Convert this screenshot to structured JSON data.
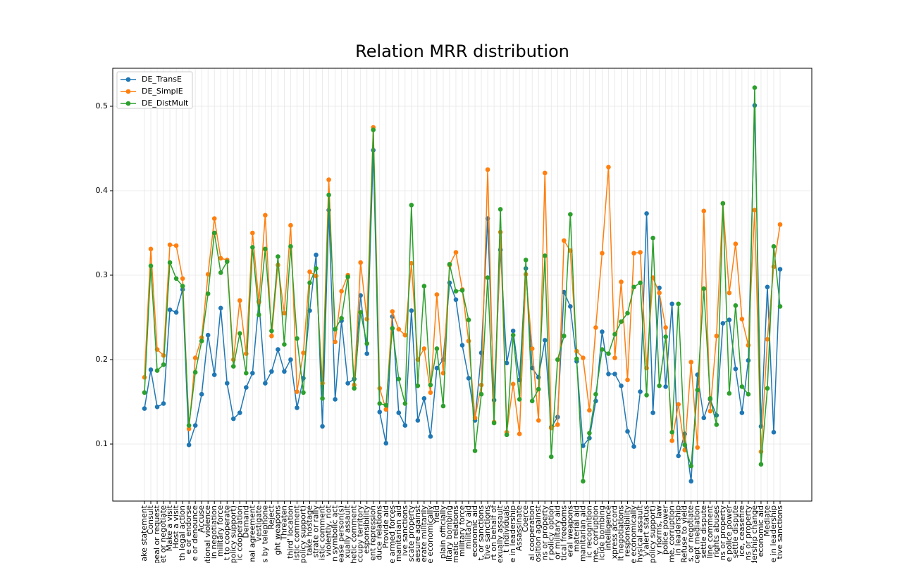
{
  "chart_data": {
    "type": "line",
    "title": "Relation MRR distribution",
    "categories": [
      "ake statement",
      "Consult",
      "peal or request",
      "et or negotiate",
      "Make a visit",
      "Host a visit",
      "th legal action",
      "e or endorse",
      "e or denounce",
      "Accuse",
      "ational violence",
      "in negotiation",
      "military force",
      "t to cooperate",
      "policy support)",
      "ic cooperation",
      "Demand",
      "nal agreement",
      "vestigate",
      "s by telephone",
      "Reject",
      "ght weapons",
      "Threaten",
      "third' location",
      "istic comment",
      "policy support)",
      "take hostage",
      "strate or rally",
      "istic comment",
      "violently, riot",
      "n symbolic act",
      "ease person(s)",
      "xually assault",
      "thetic comment",
      "ccupy territory",
      "esponsibility",
      "ent repression",
      "duce relations",
      "Provide aid",
      "e armed forces",
      "manitarian aid",
      "ive sanctions",
      "scate property",
      "aesure against",
      "erate militarily",
      "e economically",
      "Yield",
      "plain officially",
      "litary bombing",
      "matic relations",
      "military force",
      "military aid",
      "economic aid",
      "t, or sanctions",
      "tive sanctions",
      "rt on behalf of",
      "exually assault",
      "t individuals",
      "e in leadership",
      "Assassinate",
      "Coerce",
      "al cooperation",
      "osition against",
      "ns or property",
      "r policy option",
      "or military aid",
      "tical freedoms",
      "eral weapons",
      "material aid",
      "manitarian aid",
      "ic recognition",
      "me, corruption",
      "icide bombing",
      "intelligence",
      "xpress accord",
      "lt negotiations",
      "responsibility",
      "e economically",
      "hysical assault",
      "y'alert status",
      "policy support)",
      "y norms, law",
      "police power",
      "me, corruption",
      "in leadership",
      "Refuse to yield",
      "s, or negotiate",
      "cept mediation",
      "settle dispute",
      "line comment",
      "rights abuses",
      "ns or property",
      "e police power",
      "settle dispute",
      "ice, ceasefire",
      "ns or property",
      "dership change",
      "economic aid",
      "Mediate",
      "e in leadership",
      "tive sanctions"
    ],
    "series": [
      {
        "name": "DE_TransE",
        "color": "#1f77b4",
        "values": [
          0.142,
          0.188,
          0.144,
          0.148,
          0.259,
          0.256,
          0.283,
          0.099,
          0.122,
          0.159,
          0.229,
          0.182,
          0.261,
          0.172,
          0.13,
          0.137,
          0.167,
          0.184,
          0.269,
          0.172,
          0.186,
          0.212,
          0.186,
          0.2,
          0.143,
          0.178,
          0.258,
          0.324,
          0.121,
          0.377,
          0.153,
          0.246,
          0.172,
          0.177,
          0.276,
          0.207,
          0.448,
          0.138,
          0.101,
          0.251,
          0.137,
          0.122,
          0.258,
          0.128,
          0.154,
          0.109,
          0.19,
          0.2,
          0.291,
          0.271,
          0.217,
          0.178,
          0.128,
          0.208,
          0.367,
          0.152,
          0.33,
          0.196,
          0.234,
          0.176,
          0.308,
          0.19,
          0.179,
          0.223,
          0.12,
          0.132,
          0.28,
          0.263,
          0.198,
          0.098,
          0.107,
          0.151,
          0.233,
          0.183,
          0.183,
          0.169,
          0.115,
          0.097,
          0.162,
          0.373,
          0.137,
          0.285,
          0.168,
          0.266,
          0.086,
          0.112,
          0.056,
          0.182,
          0.131,
          0.153,
          0.134,
          0.243,
          0.247,
          0.189,
          0.137,
          0.199,
          0.501,
          0.121,
          0.286,
          0.114,
          0.307
        ]
      },
      {
        "name": "DE_SimplE",
        "color": "#ff7f0e",
        "values": [
          0.179,
          0.331,
          0.212,
          0.205,
          0.336,
          0.335,
          0.296,
          0.118,
          0.202,
          0.226,
          0.301,
          0.367,
          0.32,
          0.318,
          0.2,
          0.27,
          0.207,
          0.35,
          0.268,
          0.371,
          0.228,
          0.312,
          0.255,
          0.359,
          0.162,
          0.208,
          0.304,
          0.299,
          0.172,
          0.413,
          0.221,
          0.281,
          0.3,
          0.17,
          0.315,
          0.248,
          0.475,
          0.166,
          0.141,
          0.257,
          0.236,
          0.229,
          0.314,
          0.2,
          0.213,
          0.161,
          0.277,
          0.184,
          0.312,
          0.327,
          0.283,
          0.222,
          0.131,
          0.17,
          0.425,
          0.126,
          0.351,
          0.114,
          0.171,
          0.112,
          0.301,
          0.213,
          0.128,
          0.421,
          0.119,
          0.123,
          0.341,
          0.329,
          0.21,
          0.202,
          0.14,
          0.238,
          0.326,
          0.428,
          0.202,
          0.292,
          0.176,
          0.326,
          0.327,
          0.19,
          0.297,
          0.279,
          0.238,
          0.104,
          0.147,
          0.093,
          0.197,
          0.096,
          0.376,
          0.139,
          0.228,
          0.385,
          0.279,
          0.337,
          0.248,
          0.217,
          0.377,
          0.091,
          0.224,
          0.31,
          0.36
        ]
      },
      {
        "name": "DE_DistMult",
        "color": "#2ca02c",
        "values": [
          0.161,
          0.311,
          0.187,
          0.194,
          0.315,
          0.296,
          0.287,
          0.122,
          0.185,
          0.222,
          0.278,
          0.35,
          0.303,
          0.316,
          0.192,
          0.231,
          0.184,
          0.333,
          0.253,
          0.331,
          0.234,
          0.322,
          0.218,
          0.334,
          0.225,
          0.161,
          0.291,
          0.308,
          0.154,
          0.395,
          0.236,
          0.249,
          0.298,
          0.166,
          0.256,
          0.219,
          0.472,
          0.148,
          0.146,
          0.237,
          0.177,
          0.148,
          0.383,
          0.169,
          0.287,
          0.17,
          0.213,
          0.145,
          0.313,
          0.281,
          0.282,
          0.247,
          0.092,
          0.159,
          0.297,
          0.125,
          0.378,
          0.111,
          0.229,
          0.153,
          0.318,
          0.151,
          0.165,
          0.323,
          0.085,
          0.2,
          0.228,
          0.372,
          0.201,
          0.056,
          0.113,
          0.159,
          0.212,
          0.207,
          0.23,
          0.245,
          0.255,
          0.286,
          0.291,
          0.158,
          0.344,
          0.169,
          0.227,
          0.114,
          0.266,
          0.099,
          0.074,
          0.164,
          0.284,
          0.154,
          0.123,
          0.385,
          0.16,
          0.264,
          0.168,
          0.159,
          0.522,
          0.076,
          0.166,
          0.334,
          0.263
        ]
      }
    ],
    "ylim": [
      0.0325,
      0.545
    ],
    "yticks": [
      0.1,
      0.2,
      0.3,
      0.4,
      0.5
    ],
    "grid": true,
    "legend": "upper left"
  }
}
